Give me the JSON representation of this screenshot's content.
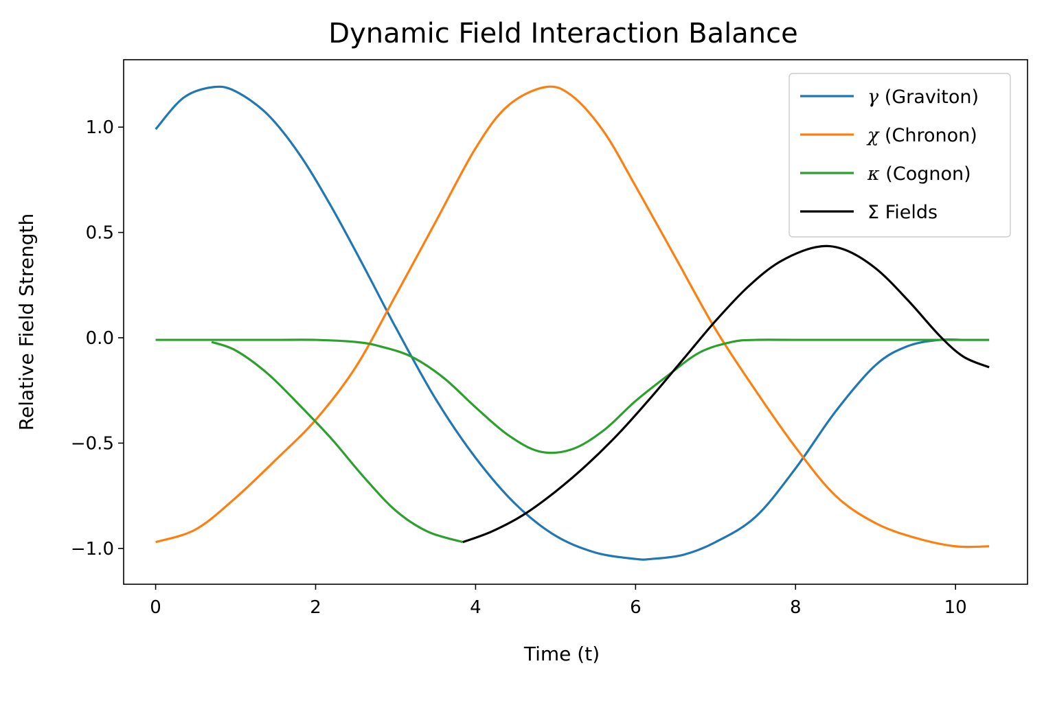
{
  "chart_data": {
    "type": "line",
    "title": "Dynamic Field Interaction Balance",
    "xlabel": "Time (t)",
    "ylabel": "Relative Field Strength",
    "xlim": [
      -0.4,
      10.9
    ],
    "ylim": [
      -1.17,
      1.32
    ],
    "xticks": [
      0,
      2,
      4,
      6,
      8,
      10
    ],
    "xtick_labels": [
      "0",
      "2",
      "4",
      "6",
      "8",
      "10"
    ],
    "yticks": [
      1.0,
      0.5,
      0.0,
      -0.5,
      -1.0
    ],
    "ytick_labels": [
      "1.0",
      "0.5",
      "0.0",
      "−0.5",
      "−1.0"
    ],
    "grid": false,
    "legend_position": "top-right",
    "series": [
      {
        "name": "γ (Graviton)",
        "symbol": "γ",
        "label": "(Graviton)",
        "color": "#1f77b4",
        "x": [
          0,
          0.35,
          0.72,
          1.0,
          1.4,
          1.8,
          2.2,
          2.6,
          3.0,
          3.5,
          4.0,
          4.5,
          5.0,
          5.5,
          6.0,
          6.2,
          6.6,
          7.0,
          7.5,
          8.0,
          8.5,
          9.0,
          9.4,
          9.8,
          10.1,
          10.42
        ],
        "y": [
          0.99,
          1.14,
          1.19,
          1.17,
          1.06,
          0.87,
          0.62,
          0.34,
          0.05,
          -0.29,
          -0.57,
          -0.79,
          -0.94,
          -1.02,
          -1.05,
          -1.05,
          -1.03,
          -0.97,
          -0.85,
          -0.62,
          -0.35,
          -0.13,
          -0.04,
          -0.01,
          -0.01,
          -0.01
        ]
      },
      {
        "name": "χ (Chronon)",
        "symbol": "χ",
        "label": "(Chronon)",
        "color": "#ff7f0e",
        "x": [
          0,
          0.5,
          1.0,
          1.5,
          2.0,
          2.5,
          3.0,
          3.5,
          4.0,
          4.4,
          4.87,
          5.2,
          5.6,
          6.0,
          6.5,
          7.0,
          7.5,
          8.0,
          8.5,
          9.0,
          9.5,
          10.0,
          10.42
        ],
        "y": [
          -0.97,
          -0.91,
          -0.76,
          -0.58,
          -0.39,
          -0.14,
          0.2,
          0.55,
          0.9,
          1.1,
          1.19,
          1.15,
          0.98,
          0.72,
          0.38,
          0.04,
          -0.25,
          -0.52,
          -0.75,
          -0.88,
          -0.95,
          -0.99,
          -0.99
        ]
      },
      {
        "name": "κ (Cognon)",
        "symbol": "κ",
        "label": "(Cognon)",
        "color": "#2ca02c",
        "x": [
          0,
          0.5,
          1.0,
          1.5,
          2.0,
          2.5,
          2.8,
          3.2,
          3.6,
          4.0,
          4.4,
          4.8,
          5.2,
          5.6,
          6.0,
          6.4,
          6.8,
          7.2,
          7.5,
          8.0,
          8.5,
          9.0,
          9.5,
          10.0,
          10.42
        ],
        "y": [
          -0.01,
          -0.01,
          -0.01,
          -0.01,
          -0.01,
          -0.02,
          -0.04,
          -0.09,
          -0.19,
          -0.33,
          -0.46,
          -0.54,
          -0.53,
          -0.44,
          -0.3,
          -0.18,
          -0.07,
          -0.02,
          -0.01,
          -0.01,
          -0.01,
          -0.01,
          -0.01,
          -0.01,
          -0.01
        ]
      },
      {
        "name": "κ (Cognon) branch",
        "legend": false,
        "color": "#2ca02c",
        "x": [
          0.7,
          1.0,
          1.4,
          1.8,
          2.2,
          2.6,
          3.0,
          3.4,
          3.84
        ],
        "y": [
          -0.02,
          -0.06,
          -0.17,
          -0.32,
          -0.48,
          -0.66,
          -0.82,
          -0.92,
          -0.97
        ]
      },
      {
        "name": "Σ Fields",
        "symbol": "Σ",
        "label": "Fields",
        "color": "#000000",
        "x": [
          3.84,
          4.2,
          4.6,
          5.0,
          5.4,
          5.8,
          6.2,
          6.6,
          7.0,
          7.4,
          7.8,
          8.25,
          8.6,
          9.0,
          9.4,
          9.8,
          10.1,
          10.42
        ],
        "y": [
          -0.97,
          -0.92,
          -0.84,
          -0.73,
          -0.6,
          -0.45,
          -0.28,
          -0.1,
          0.08,
          0.24,
          0.36,
          0.43,
          0.42,
          0.33,
          0.18,
          0.01,
          -0.09,
          -0.14
        ]
      }
    ]
  }
}
